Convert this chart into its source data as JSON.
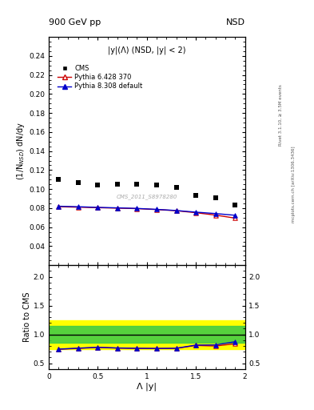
{
  "title_left": "900 GeV pp",
  "title_right": "NSD",
  "plot_label": "|y|(Λ) (NSD, |y| < 2)",
  "watermark": "CMS_2011_S8978280",
  "right_label": "Rivet 3.1.10, ≥ 3.5M events",
  "arxiv_label": "mcplots.cern.ch [arXiv:1306.3436]",
  "ylabel_main": "(1/N$_{NSD}$) dN/dy",
  "ylabel_ratio": "Ratio to CMS",
  "xlabel": "Λ |y|",
  "ylim_main": [
    0.02,
    0.26
  ],
  "ylim_ratio": [
    0.4,
    2.2
  ],
  "yticks_main": [
    0.04,
    0.06,
    0.08,
    0.1,
    0.12,
    0.14,
    0.16,
    0.18,
    0.2,
    0.22,
    0.24
  ],
  "yticks_ratio": [
    0.5,
    1.0,
    1.5,
    2.0
  ],
  "xlim": [
    0.0,
    2.0
  ],
  "cms_x": [
    0.1,
    0.3,
    0.5,
    0.7,
    0.9,
    1.1,
    1.3,
    1.5,
    1.7,
    1.9
  ],
  "cms_y": [
    0.11,
    0.107,
    0.104,
    0.105,
    0.105,
    0.104,
    0.102,
    0.093,
    0.091,
    0.083
  ],
  "pythia6_x": [
    0.1,
    0.3,
    0.5,
    0.7,
    0.9,
    1.1,
    1.3,
    1.5,
    1.7,
    1.9
  ],
  "pythia6_y": [
    0.0815,
    0.081,
    0.0805,
    0.08,
    0.0795,
    0.0785,
    0.0773,
    0.0752,
    0.0727,
    0.0695
  ],
  "pythia8_x": [
    0.1,
    0.3,
    0.5,
    0.7,
    0.9,
    1.1,
    1.3,
    1.5,
    1.7,
    1.9
  ],
  "pythia8_y": [
    0.082,
    0.0815,
    0.0808,
    0.0803,
    0.0797,
    0.0787,
    0.0775,
    0.0758,
    0.0743,
    0.0725
  ],
  "ratio6_x": [
    0.1,
    0.3,
    0.5,
    0.7,
    0.9,
    1.1,
    1.3,
    1.5,
    1.7,
    1.9
  ],
  "ratio6_y": [
    0.741,
    0.757,
    0.774,
    0.762,
    0.757,
    0.755,
    0.757,
    0.809,
    0.799,
    0.838
  ],
  "ratio8_x": [
    0.1,
    0.3,
    0.5,
    0.7,
    0.9,
    1.1,
    1.3,
    1.5,
    1.7,
    1.9
  ],
  "ratio8_y": [
    0.745,
    0.762,
    0.777,
    0.765,
    0.76,
    0.757,
    0.76,
    0.815,
    0.817,
    0.873
  ],
  "band_yellow_lo": 0.75,
  "band_yellow_hi": 1.25,
  "band_green_lo": 0.85,
  "band_green_hi": 1.15,
  "cms_color": "black",
  "pythia6_color": "#cc0000",
  "pythia8_color": "#0000cc",
  "legend_cms": "CMS",
  "legend_p6": "Pythia 6.428 370",
  "legend_p8": "Pythia 8.308 default"
}
